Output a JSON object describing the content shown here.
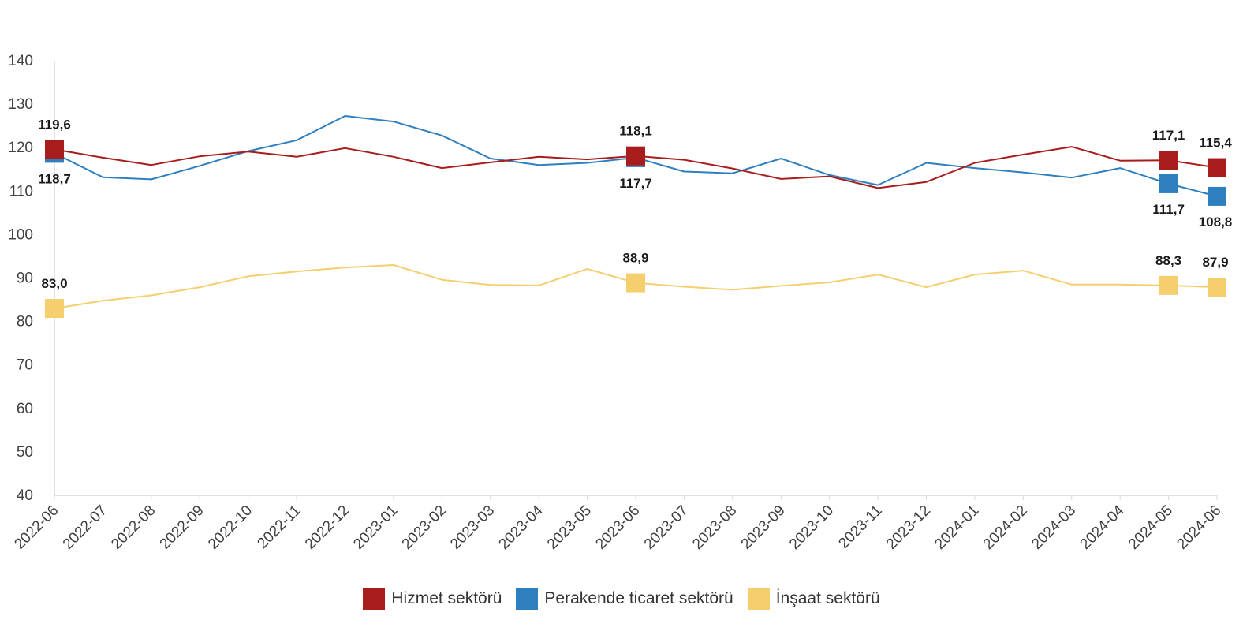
{
  "chart_data": {
    "type": "line",
    "title": "",
    "xlabel": "",
    "ylabel": "",
    "ylim": [
      40,
      140
    ],
    "yticks": [
      "140",
      "130",
      "120",
      "110",
      "100",
      "90",
      "80",
      "70",
      "60",
      "50",
      "40"
    ],
    "grid": false,
    "legend_position": "bottom",
    "categories": [
      "2022-06",
      "2022-07",
      "2022-08",
      "2022-09",
      "2022-10",
      "2022-11",
      "2022-12",
      "2023-01",
      "2023-02",
      "2023-03",
      "2023-04",
      "2023-05",
      "2023-06",
      "2023-07",
      "2023-08",
      "2023-09",
      "2023-10",
      "2023-11",
      "2023-12",
      "2024-01",
      "2024-02",
      "2024-03",
      "2024-04",
      "2024-05",
      "2024-06"
    ],
    "series": [
      {
        "name": "Hizmet sektörü",
        "color": "#A81C1C",
        "values": [
          119.6,
          117.7,
          116.0,
          118.0,
          119.1,
          117.9,
          119.9,
          117.9,
          115.3,
          116.6,
          117.9,
          117.3,
          118.1,
          117.2,
          115.2,
          112.8,
          113.4,
          110.7,
          112.1,
          116.5,
          118.4,
          120.2,
          117.0,
          117.1,
          115.4
        ],
        "labels": [
          {
            "index": 0,
            "text": "119,6",
            "pos": "above"
          },
          {
            "index": 12,
            "text": "118,1",
            "pos": "above"
          },
          {
            "index": 23,
            "text": "117,1",
            "pos": "above"
          },
          {
            "index": 24,
            "text": "115,4",
            "pos": "above"
          }
        ]
      },
      {
        "name": "Perakende ticaret sektörü",
        "color": "#2E7FC0",
        "values": [
          118.7,
          113.2,
          112.7,
          115.8,
          119.2,
          121.7,
          127.3,
          126.0,
          122.8,
          117.5,
          116.0,
          116.5,
          117.7,
          114.5,
          114.1,
          117.5,
          113.7,
          111.4,
          116.5,
          115.3,
          114.3,
          113.1,
          115.3,
          111.7,
          108.8
        ],
        "labels": [
          {
            "index": 0,
            "text": "118,7",
            "pos": "below"
          },
          {
            "index": 12,
            "text": "117,7",
            "pos": "below"
          },
          {
            "index": 23,
            "text": "111,7",
            "pos": "below"
          },
          {
            "index": 24,
            "text": "108,8",
            "pos": "below"
          }
        ]
      },
      {
        "name": "İnşaat sektörü",
        "color": "#F5CF6E",
        "values": [
          83.0,
          84.8,
          86.0,
          87.9,
          90.4,
          91.5,
          92.4,
          93.0,
          89.6,
          88.4,
          88.3,
          92.1,
          88.9,
          88.0,
          87.3,
          88.2,
          89.0,
          90.8,
          87.9,
          90.8,
          91.7,
          88.5,
          88.5,
          88.3,
          87.9
        ],
        "labels": [
          {
            "index": 0,
            "text": "83,0",
            "pos": "above"
          },
          {
            "index": 12,
            "text": "88,9",
            "pos": "above"
          },
          {
            "index": 23,
            "text": "88,3",
            "pos": "above"
          },
          {
            "index": 24,
            "text": "87,9",
            "pos": "above"
          }
        ]
      }
    ],
    "markers_at": [
      0,
      12,
      23,
      24
    ]
  }
}
